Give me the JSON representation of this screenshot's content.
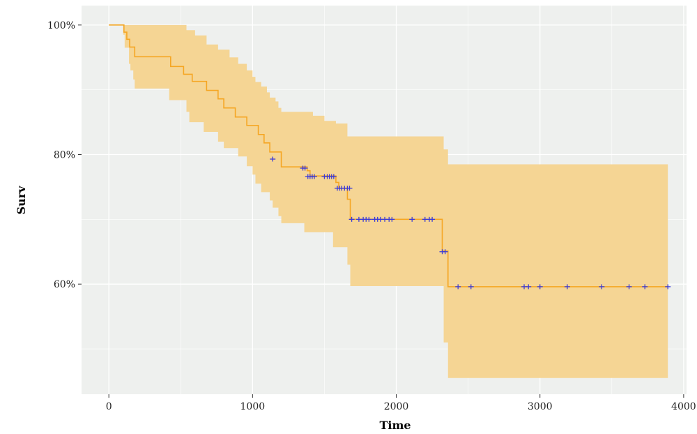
{
  "chart_data": {
    "type": "line",
    "title": "",
    "xlabel": "Time",
    "ylabel": "Surv",
    "xlim": [
      -190,
      4020
    ],
    "ylim": [
      0.43,
      1.03
    ],
    "x_ticks": [
      0,
      1000,
      2000,
      3000,
      4000
    ],
    "x_tick_labels": [
      "0",
      "1000",
      "2000",
      "3000",
      "4000"
    ],
    "y_ticks": [
      0.6,
      0.8,
      1.0
    ],
    "y_tick_labels": [
      "60%",
      "80%",
      "100%"
    ],
    "x_minor_gridlines": [
      500,
      1500,
      2500,
      3500
    ],
    "y_minor_gridlines": [
      0.5,
      0.7,
      0.9
    ],
    "grid": true,
    "legend": "none",
    "colors": {
      "panel_background": "#EEF0EE",
      "gridline": "#FFFFFF",
      "curve": "#F5A623",
      "confidence_band": "#F5D594",
      "censor_mark": "#3B3BD8"
    },
    "survival_curve": {
      "name": "",
      "steps": [
        [
          0,
          1.0
        ],
        [
          105,
          0.989
        ],
        [
          125,
          0.978
        ],
        [
          145,
          0.966
        ],
        [
          180,
          0.951
        ],
        [
          430,
          0.936
        ],
        [
          520,
          0.924
        ],
        [
          580,
          0.913
        ],
        [
          680,
          0.899
        ],
        [
          760,
          0.886
        ],
        [
          800,
          0.872
        ],
        [
          880,
          0.858
        ],
        [
          960,
          0.845
        ],
        [
          1040,
          0.831
        ],
        [
          1080,
          0.818
        ],
        [
          1120,
          0.804
        ],
        [
          1200,
          0.781
        ],
        [
          1380,
          0.775
        ],
        [
          1400,
          0.767
        ],
        [
          1580,
          0.757
        ],
        [
          1600,
          0.748
        ],
        [
          1660,
          0.731
        ],
        [
          1680,
          0.7
        ],
        [
          2300,
          0.7
        ],
        [
          2320,
          0.651
        ],
        [
          2360,
          0.596
        ],
        [
          3890,
          0.596
        ]
      ]
    },
    "confidence_band": {
      "upper": [
        [
          0,
          1.0
        ],
        [
          420,
          1.0
        ],
        [
          540,
          0.992
        ],
        [
          600,
          0.984
        ],
        [
          680,
          0.97
        ],
        [
          760,
          0.962
        ],
        [
          840,
          0.95
        ],
        [
          900,
          0.94
        ],
        [
          960,
          0.93
        ],
        [
          1000,
          0.92
        ],
        [
          1020,
          0.912
        ],
        [
          1060,
          0.905
        ],
        [
          1100,
          0.896
        ],
        [
          1120,
          0.888
        ],
        [
          1160,
          0.882
        ],
        [
          1180,
          0.872
        ],
        [
          1200,
          0.866
        ],
        [
          1420,
          0.86
        ],
        [
          1500,
          0.852
        ],
        [
          1580,
          0.848
        ],
        [
          1660,
          0.828
        ],
        [
          2300,
          0.828
        ],
        [
          2330,
          0.808
        ],
        [
          2360,
          0.785
        ],
        [
          3890,
          0.785
        ]
      ],
      "lower": [
        [
          0,
          1.0
        ],
        [
          100,
          0.985
        ],
        [
          110,
          0.965
        ],
        [
          140,
          0.94
        ],
        [
          150,
          0.93
        ],
        [
          170,
          0.916
        ],
        [
          180,
          0.902
        ],
        [
          420,
          0.884
        ],
        [
          540,
          0.866
        ],
        [
          560,
          0.85
        ],
        [
          660,
          0.835
        ],
        [
          760,
          0.82
        ],
        [
          800,
          0.81
        ],
        [
          900,
          0.797
        ],
        [
          960,
          0.782
        ],
        [
          1000,
          0.769
        ],
        [
          1020,
          0.755
        ],
        [
          1060,
          0.742
        ],
        [
          1120,
          0.729
        ],
        [
          1140,
          0.718
        ],
        [
          1180,
          0.705
        ],
        [
          1200,
          0.694
        ],
        [
          1360,
          0.68
        ],
        [
          1560,
          0.657
        ],
        [
          1660,
          0.63
        ],
        [
          1680,
          0.597
        ],
        [
          2300,
          0.597
        ],
        [
          2330,
          0.51
        ],
        [
          2360,
          0.455
        ],
        [
          3890,
          0.455
        ]
      ]
    },
    "censor_marks": [
      [
        1140,
        0.793
      ],
      [
        1350,
        0.779
      ],
      [
        1365,
        0.779
      ],
      [
        1385,
        0.766
      ],
      [
        1400,
        0.766
      ],
      [
        1415,
        0.766
      ],
      [
        1430,
        0.766
      ],
      [
        1500,
        0.766
      ],
      [
        1520,
        0.766
      ],
      [
        1535,
        0.766
      ],
      [
        1550,
        0.766
      ],
      [
        1565,
        0.766
      ],
      [
        1590,
        0.748
      ],
      [
        1605,
        0.748
      ],
      [
        1620,
        0.748
      ],
      [
        1640,
        0.748
      ],
      [
        1660,
        0.748
      ],
      [
        1675,
        0.748
      ],
      [
        1690,
        0.7
      ],
      [
        1740,
        0.7
      ],
      [
        1770,
        0.7
      ],
      [
        1790,
        0.7
      ],
      [
        1810,
        0.7
      ],
      [
        1850,
        0.7
      ],
      [
        1870,
        0.7
      ],
      [
        1890,
        0.7
      ],
      [
        1920,
        0.7
      ],
      [
        1950,
        0.7
      ],
      [
        1970,
        0.7
      ],
      [
        2110,
        0.7
      ],
      [
        2200,
        0.7
      ],
      [
        2230,
        0.7
      ],
      [
        2250,
        0.7
      ],
      [
        2320,
        0.65
      ],
      [
        2340,
        0.65
      ],
      [
        2430,
        0.596
      ],
      [
        2520,
        0.596
      ],
      [
        2890,
        0.596
      ],
      [
        2920,
        0.596
      ],
      [
        3000,
        0.596
      ],
      [
        3190,
        0.596
      ],
      [
        3430,
        0.596
      ],
      [
        3620,
        0.596
      ],
      [
        3730,
        0.596
      ],
      [
        3890,
        0.596
      ]
    ]
  }
}
